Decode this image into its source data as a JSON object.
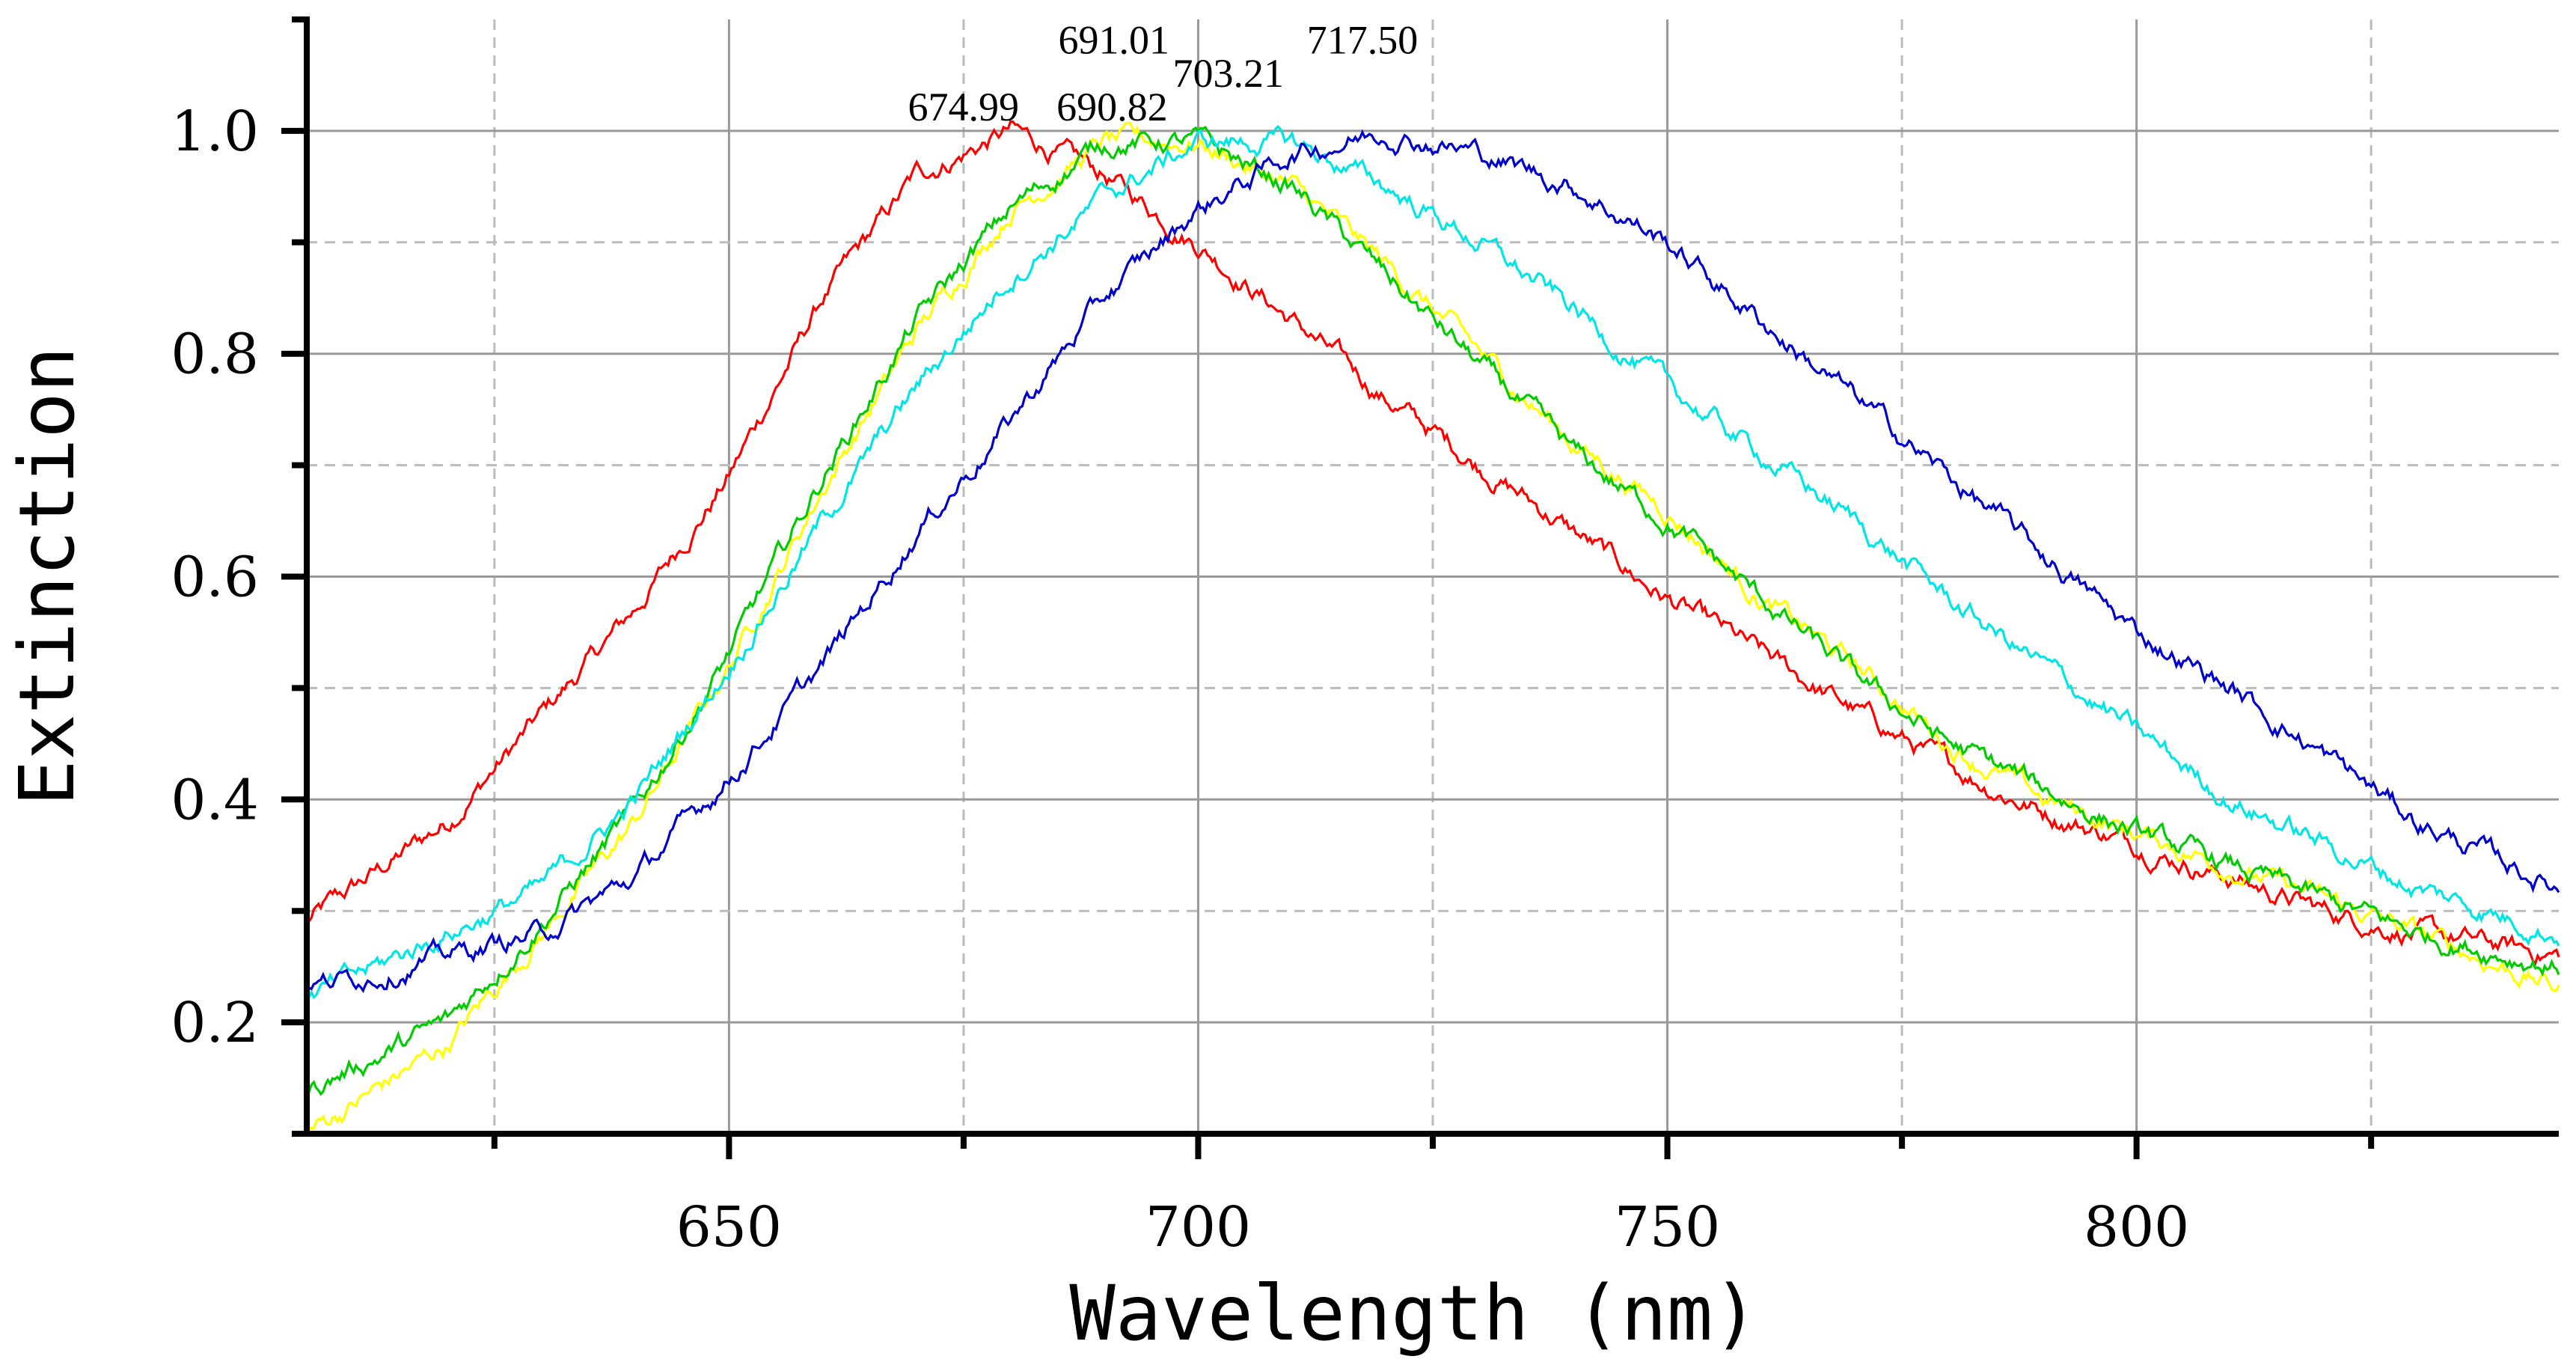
{
  "chart_data": {
    "type": "line",
    "title": "",
    "xlabel": "Wavelength (nm)",
    "ylabel": "Extinction",
    "xlim": [
      605,
      845
    ],
    "ylim": [
      0.1,
      1.1
    ],
    "x_ticks": [
      650,
      700,
      750,
      800
    ],
    "x_minor_ticks": [
      625,
      675,
      725,
      775,
      825
    ],
    "y_ticks": [
      0.2,
      0.4,
      0.6,
      0.8,
      1.0
    ],
    "y_tick_labels": [
      "0.2",
      "0.4",
      "0.6",
      "0.8",
      "1.0"
    ],
    "y_minor_ticks": [
      0.3,
      0.5,
      0.7,
      0.9
    ],
    "grid": true,
    "series": [
      {
        "name": "red",
        "color": "#ff0000",
        "peak_label": "674.99",
        "x": [
          605,
          620,
          640,
          650,
          660,
          670,
          680,
          690,
          700,
          710,
          720,
          730,
          740,
          750,
          760,
          770,
          780,
          790,
          800,
          810,
          820,
          830,
          845
        ],
        "y": [
          0.29,
          0.38,
          0.57,
          0.69,
          0.85,
          0.96,
          1.0,
          0.96,
          0.9,
          0.83,
          0.76,
          0.7,
          0.64,
          0.58,
          0.53,
          0.48,
          0.43,
          0.39,
          0.36,
          0.33,
          0.3,
          0.28,
          0.26
        ]
      },
      {
        "name": "yellow",
        "color": "#ffff00",
        "peak_label": "690.82",
        "x": [
          605,
          620,
          630,
          640,
          650,
          660,
          670,
          680,
          690,
          700,
          710,
          720,
          730,
          740,
          750,
          760,
          770,
          780,
          790,
          800,
          810,
          820,
          830,
          845
        ],
        "y": [
          0.1,
          0.18,
          0.28,
          0.38,
          0.52,
          0.68,
          0.82,
          0.93,
          0.99,
          0.99,
          0.95,
          0.88,
          0.8,
          0.72,
          0.66,
          0.58,
          0.52,
          0.45,
          0.4,
          0.37,
          0.34,
          0.31,
          0.28,
          0.23
        ]
      },
      {
        "name": "green",
        "color": "#00cc00",
        "peak_label": "691.01",
        "x": [
          605,
          620,
          630,
          640,
          650,
          660,
          670,
          680,
          690,
          700,
          710,
          720,
          730,
          740,
          750,
          760,
          770,
          780,
          790,
          800,
          810,
          820,
          830,
          845
        ],
        "y": [
          0.14,
          0.2,
          0.29,
          0.39,
          0.53,
          0.69,
          0.83,
          0.93,
          0.99,
          0.99,
          0.95,
          0.87,
          0.79,
          0.71,
          0.65,
          0.58,
          0.51,
          0.45,
          0.41,
          0.37,
          0.34,
          0.31,
          0.28,
          0.25
        ]
      },
      {
        "name": "cyan",
        "color": "#00e5e5",
        "peak_label": "703.21",
        "x": [
          605,
          620,
          630,
          640,
          650,
          660,
          670,
          680,
          690,
          700,
          710,
          720,
          730,
          740,
          750,
          760,
          770,
          780,
          790,
          800,
          810,
          820,
          830,
          845
        ],
        "y": [
          0.22,
          0.28,
          0.32,
          0.4,
          0.52,
          0.65,
          0.77,
          0.87,
          0.94,
          0.99,
          0.99,
          0.95,
          0.9,
          0.84,
          0.77,
          0.71,
          0.65,
          0.58,
          0.52,
          0.46,
          0.4,
          0.36,
          0.32,
          0.28
        ]
      },
      {
        "name": "blue",
        "color": "#0000cc",
        "peak_label": "717.50",
        "x": [
          605,
          620,
          630,
          640,
          650,
          660,
          670,
          680,
          690,
          700,
          710,
          720,
          730,
          740,
          750,
          760,
          770,
          780,
          790,
          800,
          810,
          820,
          830,
          845
        ],
        "y": [
          0.23,
          0.26,
          0.28,
          0.33,
          0.42,
          0.52,
          0.64,
          0.74,
          0.85,
          0.93,
          0.98,
          1.0,
          0.98,
          0.95,
          0.9,
          0.83,
          0.76,
          0.69,
          0.62,
          0.55,
          0.5,
          0.44,
          0.38,
          0.32
        ]
      }
    ],
    "peak_annotations": [
      {
        "text": "674.99",
        "x": 674.99,
        "y": 1.0
      },
      {
        "text": "690.82",
        "x": 690.82,
        "y": 1.0
      },
      {
        "text": "691.01",
        "x": 691.01,
        "y": 1.06
      },
      {
        "text": "703.21",
        "x": 703.21,
        "y": 1.03
      },
      {
        "text": "717.50",
        "x": 717.5,
        "y": 1.06
      }
    ]
  }
}
